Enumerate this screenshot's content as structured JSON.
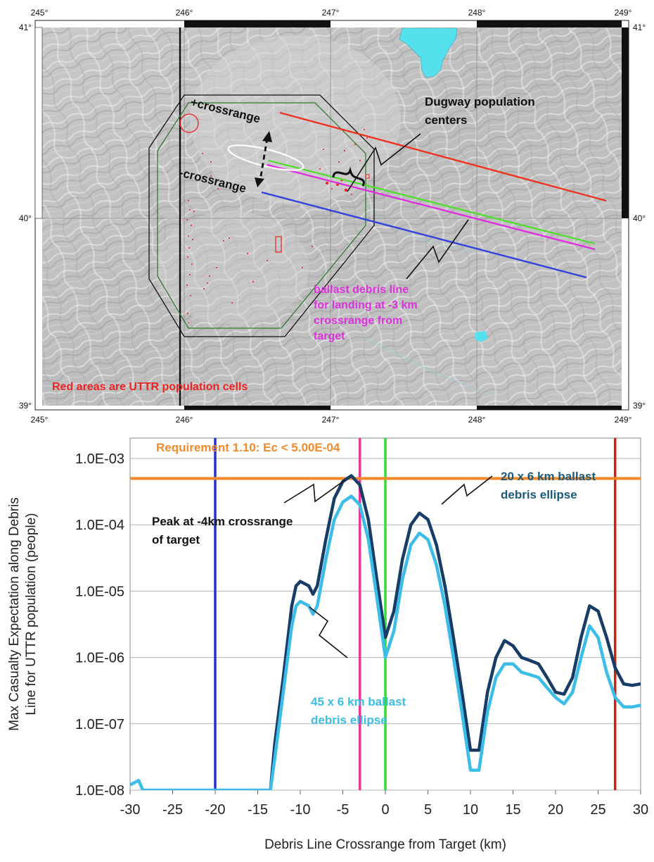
{
  "map": {
    "lon_ticks": [
      {
        "label": "245°",
        "value": 245
      },
      {
        "label": "246°",
        "value": 246
      },
      {
        "label": "247°",
        "value": 247
      },
      {
        "label": "248°",
        "value": 248
      },
      {
        "label": "249°",
        "value": 249
      }
    ],
    "lat_ticks": [
      {
        "label": "41°",
        "value": 41
      },
      {
        "label": "40°",
        "value": 40
      },
      {
        "label": "39°",
        "value": 39
      }
    ],
    "annotations": {
      "plus_crossrange": "+crossrange",
      "minus_crossrange": "-crossrange",
      "dugway_line1": "Dugway population",
      "dugway_line2": "centers",
      "ballast_line1": "ballast debris line",
      "ballast_line2": "for landing at -3 km",
      "ballast_line3": "crossrange from",
      "ballast_line4": "target",
      "red_areas": "Red areas are UTTR population cells"
    },
    "colors": {
      "red_line": "#ee3322",
      "green_line": "#55dd33",
      "magenta_line": "#dd33dd",
      "blue_line": "#3344dd",
      "lake": "#55e0ee",
      "population": "#ee2222"
    }
  },
  "chart_data": {
    "type": "line",
    "xlabel": "Debris Line Crossrange from Target (km)",
    "ylabel_line1": "Max Casualty Expectation along Debris",
    "ylabel_line2": "Line for UTTR population (people)",
    "xlim": [
      -30,
      30
    ],
    "ylim": [
      1e-08,
      0.001
    ],
    "yscale": "log",
    "x_ticks": [
      "-30",
      "-25",
      "-20",
      "-15",
      "-10",
      "-5",
      "0",
      "5",
      "10",
      "15",
      "20",
      "25",
      "30"
    ],
    "y_ticks": [
      "1.0E-03",
      "1.0E-04",
      "1.0E-05",
      "1.0E-06",
      "1.0E-07",
      "1.0E-08"
    ],
    "requirement": {
      "label": "Requirement 1.10: Ec < 5.00E-04",
      "value": 0.0005,
      "color": "#f58a2a"
    },
    "vertical_lines": [
      {
        "x": -20,
        "color": "#2233cc"
      },
      {
        "x": -3,
        "color": "#ee3399"
      },
      {
        "x": 0,
        "color": "#33dd33"
      },
      {
        "x": 27,
        "color": "#cc2211"
      }
    ],
    "annotations": {
      "peak_line1": "Peak at -4km crossrange",
      "peak_line2": "of target",
      "dark_line1": "20 x 6 km ballast",
      "dark_line2": "debris ellipse",
      "light_line1": "45 x 6 km ballast",
      "light_line2": "debris ellipse"
    },
    "series": [
      {
        "name": "20 x 6 km ballast debris ellipse",
        "color": "#173c66",
        "x": [
          -13.5,
          -13,
          -12,
          -11,
          -10.5,
          -10,
          -9,
          -8.5,
          -8,
          -7,
          -6,
          -5,
          -4,
          -3,
          -2,
          -1,
          0,
          1,
          2,
          3,
          4,
          5,
          6,
          7,
          8,
          9,
          10,
          11,
          12,
          13,
          14,
          15,
          16,
          17,
          18,
          19,
          20,
          21,
          22,
          23,
          24,
          25,
          26,
          27,
          28,
          29,
          30
        ],
        "y": [
          1e-08,
          5e-08,
          5e-07,
          6e-06,
          1.2e-05,
          1.4e-05,
          1.2e-05,
          9e-06,
          1.2e-05,
          6e-05,
          0.00025,
          0.00045,
          0.00055,
          0.0004,
          0.00012,
          1.5e-05,
          2e-06,
          5e-06,
          3e-05,
          0.0001,
          0.00015,
          0.00012,
          5e-05,
          1.2e-05,
          2e-06,
          3e-07,
          4e-08,
          4e-08,
          3e-07,
          1e-06,
          1.8e-06,
          1.5e-06,
          1e-06,
          9e-07,
          8e-07,
          5e-07,
          3e-07,
          2.8e-07,
          5e-07,
          2e-06,
          6e-06,
          5e-06,
          2e-06,
          7e-07,
          4e-07,
          3.8e-07,
          4e-07
        ]
      },
      {
        "name": "45 x 6 km ballast debris ellipse",
        "color": "#3cbde8",
        "x": [
          -30,
          -29,
          -28.5,
          -28,
          -14,
          -13.5,
          -13,
          -12,
          -11,
          -10.5,
          -10,
          -9,
          -8.5,
          -8,
          -7,
          -6,
          -5,
          -4,
          -3,
          -2,
          -1,
          0,
          1,
          2,
          3,
          4,
          5,
          6,
          7,
          8,
          9,
          10,
          11,
          12,
          13,
          14,
          15,
          16,
          17,
          18,
          19,
          20,
          21,
          22,
          23,
          24,
          25,
          26,
          27,
          28,
          29,
          30
        ],
        "y": [
          1.2e-08,
          1.4e-08,
          1e-08,
          1e-08,
          1e-08,
          1e-08,
          3e-08,
          3e-07,
          3e-06,
          6e-06,
          7e-06,
          6e-06,
          4.5e-06,
          6e-06,
          3e-05,
          0.00012,
          0.00022,
          0.00027,
          0.0002,
          6e-05,
          8e-06,
          1e-06,
          2.5e-06,
          1.5e-05,
          5e-05,
          7.5e-05,
          6e-05,
          2.5e-05,
          6e-06,
          1e-06,
          1.5e-07,
          2e-08,
          2e-08,
          1.5e-07,
          5e-07,
          8e-07,
          8e-07,
          6e-07,
          5.5e-07,
          5e-07,
          3.5e-07,
          2.5e-07,
          2e-07,
          3e-07,
          1e-06,
          3e-06,
          2e-06,
          6e-07,
          2.5e-07,
          1.8e-07,
          1.8e-07,
          1.9e-07
        ]
      }
    ]
  }
}
